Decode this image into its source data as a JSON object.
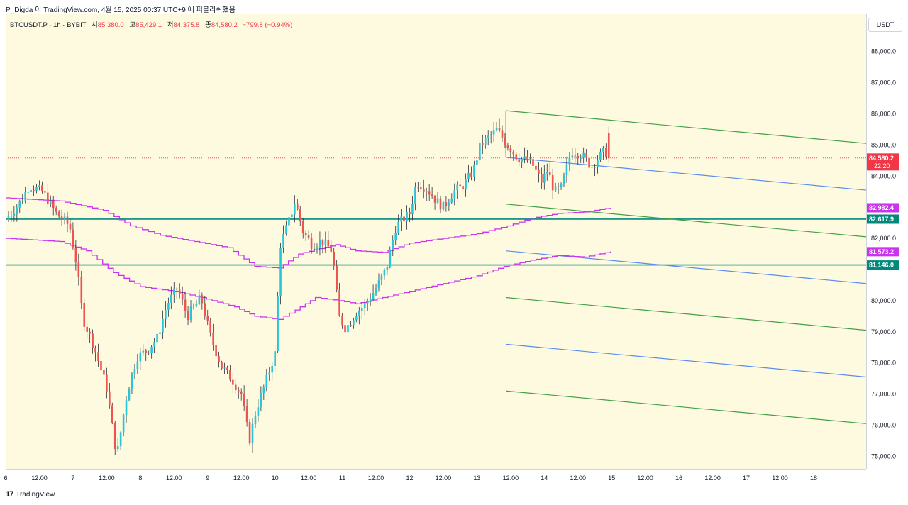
{
  "header": {
    "publisher_line": "P_Digda 이 TradingView.com, 4월 15, 2025 00:37 UTC+9 에 퍼블리쉬했음"
  },
  "legend": {
    "symbol": "BTCUSDT.P · 1h · BYBIT",
    "open_label": "시",
    "open": "85,380.0",
    "high_label": "고",
    "high": "85,429.1",
    "low_label": "저",
    "low": "84,375.8",
    "close_label": "종",
    "close": "84,580.2",
    "change": "−799.8 (−0.94%)"
  },
  "currency_button": "USDT",
  "footer": {
    "brand_mark": "17",
    "brand": "TradingView"
  },
  "colors": {
    "background": "#fefae0",
    "up": "#26c6da",
    "down": "#ef5350",
    "green_line": "#43a047",
    "blue_line": "#5b8def",
    "magenta": "#cc33ee",
    "teal_level": "#00897b",
    "price_tag": "#f23645"
  },
  "chart_data": {
    "type": "candlestick",
    "symbol": "BTCUSDT.P",
    "interval": "1h",
    "exchange": "BYBIT",
    "ylim": [
      74600,
      89200
    ],
    "y_ticks": [
      {
        "value": 75000,
        "label": "75,000.0"
      },
      {
        "value": 76000,
        "label": "76,000.0"
      },
      {
        "value": 77000,
        "label": "77,000.0"
      },
      {
        "value": 78000,
        "label": "78,000.0"
      },
      {
        "value": 79000,
        "label": "79,000.0"
      },
      {
        "value": 80000,
        "label": "80,000.0"
      },
      {
        "value": 82000,
        "label": "82,000.0"
      },
      {
        "value": 84000,
        "label": "84,000.0"
      },
      {
        "value": 85000,
        "label": "85,000.0"
      },
      {
        "value": 86000,
        "label": "86,000.0"
      },
      {
        "value": 87000,
        "label": "87,000.0"
      },
      {
        "value": 88000,
        "label": "88,000.0"
      }
    ],
    "x_range_days": [
      6,
      18.78
    ],
    "x_ticks": [
      {
        "day": 6,
        "label": "6"
      },
      {
        "day": 6.5,
        "label": "12:00"
      },
      {
        "day": 7,
        "label": "7"
      },
      {
        "day": 7.5,
        "label": "12:00"
      },
      {
        "day": 8,
        "label": "8"
      },
      {
        "day": 8.5,
        "label": "12:00"
      },
      {
        "day": 9,
        "label": "9"
      },
      {
        "day": 9.5,
        "label": "12:00"
      },
      {
        "day": 10,
        "label": "10"
      },
      {
        "day": 10.5,
        "label": "12:00"
      },
      {
        "day": 11,
        "label": "11"
      },
      {
        "day": 11.5,
        "label": "12:00"
      },
      {
        "day": 12,
        "label": "12"
      },
      {
        "day": 12.5,
        "label": "12:00"
      },
      {
        "day": 13,
        "label": "13"
      },
      {
        "day": 13.5,
        "label": "12:00"
      },
      {
        "day": 14,
        "label": "14"
      },
      {
        "day": 14.5,
        "label": "12:00"
      },
      {
        "day": 15,
        "label": "15"
      },
      {
        "day": 15.5,
        "label": "12:00"
      },
      {
        "day": 16,
        "label": "16"
      },
      {
        "day": 16.5,
        "label": "12:00"
      },
      {
        "day": 17,
        "label": "17"
      },
      {
        "day": 17.5,
        "label": "12:00"
      },
      {
        "day": 18,
        "label": "18"
      }
    ],
    "price_path": [
      [
        6.0,
        82600
      ],
      [
        6.2,
        83100
      ],
      [
        6.35,
        83700
      ],
      [
        6.55,
        83500
      ],
      [
        6.75,
        82800
      ],
      [
        6.95,
        82400
      ],
      [
        7.05,
        81200
      ],
      [
        7.15,
        79400
      ],
      [
        7.3,
        78600
      ],
      [
        7.5,
        77200
      ],
      [
        7.65,
        75000
      ],
      [
        7.8,
        77000
      ],
      [
        7.95,
        78200
      ],
      [
        8.1,
        78400
      ],
      [
        8.25,
        78800
      ],
      [
        8.4,
        79900
      ],
      [
        8.55,
        80400
      ],
      [
        8.7,
        79500
      ],
      [
        8.9,
        80100
      ],
      [
        9.05,
        78800
      ],
      [
        9.2,
        77900
      ],
      [
        9.35,
        77500
      ],
      [
        9.5,
        77000
      ],
      [
        9.62,
        75500
      ],
      [
        9.72,
        76500
      ],
      [
        9.85,
        77300
      ],
      [
        10.0,
        78300
      ],
      [
        10.08,
        81800
      ],
      [
        10.2,
        82500
      ],
      [
        10.3,
        83200
      ],
      [
        10.42,
        82200
      ],
      [
        10.55,
        81800
      ],
      [
        10.7,
        81900
      ],
      [
        10.85,
        81600
      ],
      [
        10.95,
        79500
      ],
      [
        11.05,
        79100
      ],
      [
        11.2,
        79600
      ],
      [
        11.35,
        79900
      ],
      [
        11.5,
        80400
      ],
      [
        11.65,
        81000
      ],
      [
        11.8,
        82400
      ],
      [
        12.0,
        82800
      ],
      [
        12.1,
        83800
      ],
      [
        12.25,
        83600
      ],
      [
        12.4,
        83200
      ],
      [
        12.5,
        83000
      ],
      [
        12.65,
        83500
      ],
      [
        12.8,
        83700
      ],
      [
        12.95,
        84200
      ],
      [
        13.05,
        85000
      ],
      [
        13.15,
        85200
      ],
      [
        13.3,
        85500
      ],
      [
        13.45,
        85000
      ],
      [
        13.6,
        84600
      ],
      [
        13.75,
        84500
      ],
      [
        13.85,
        84300
      ],
      [
        13.95,
        83800
      ],
      [
        14.05,
        84200
      ],
      [
        14.15,
        83500
      ],
      [
        14.25,
        83600
      ],
      [
        14.4,
        84800
      ],
      [
        14.55,
        84700
      ],
      [
        14.7,
        84300
      ],
      [
        14.8,
        84600
      ],
      [
        14.9,
        84800
      ],
      [
        14.97,
        84580
      ]
    ],
    "series": [
      {
        "name": "",
        "color": "#cc33ee",
        "points": [
          [
            6.0,
            83300
          ],
          [
            6.8,
            83200
          ],
          [
            7.45,
            82900
          ],
          [
            7.85,
            82400
          ],
          [
            8.3,
            82100
          ],
          [
            8.8,
            81900
          ],
          [
            9.3,
            81700
          ],
          [
            9.7,
            81100
          ],
          [
            10.05,
            81050
          ],
          [
            10.35,
            81500
          ],
          [
            10.9,
            81800
          ],
          [
            11.2,
            81600
          ],
          [
            11.6,
            81550
          ],
          [
            12.0,
            81850
          ],
          [
            12.5,
            82000
          ],
          [
            13.0,
            82150
          ],
          [
            13.45,
            82400
          ],
          [
            13.8,
            82650
          ],
          [
            14.2,
            82800
          ],
          [
            14.6,
            82850
          ],
          [
            14.98,
            82982.4
          ]
        ]
      },
      {
        "name": "",
        "color": "#cc33ee",
        "points": [
          [
            6.0,
            82000
          ],
          [
            6.8,
            81900
          ],
          [
            7.2,
            81600
          ],
          [
            7.6,
            80900
          ],
          [
            8.0,
            80450
          ],
          [
            8.5,
            80300
          ],
          [
            8.9,
            80100
          ],
          [
            9.4,
            79800
          ],
          [
            9.7,
            79500
          ],
          [
            10.05,
            79400
          ],
          [
            10.3,
            79700
          ],
          [
            10.6,
            80100
          ],
          [
            10.95,
            80000
          ],
          [
            11.2,
            79900
          ],
          [
            11.6,
            80100
          ],
          [
            12.0,
            80300
          ],
          [
            12.5,
            80550
          ],
          [
            13.0,
            80800
          ],
          [
            13.4,
            81100
          ],
          [
            13.8,
            81300
          ],
          [
            14.2,
            81450
          ],
          [
            14.6,
            81400
          ],
          [
            14.98,
            81573.2
          ]
        ]
      }
    ],
    "horizontal_levels": [
      {
        "value": 82617.9,
        "label": "82,617.9",
        "color": "#00897b"
      },
      {
        "value": 81146.0,
        "label": "81,146.0",
        "color": "#00897b"
      }
    ],
    "current_price": {
      "value": 84580.2,
      "label": "84,580.2",
      "countdown": "22:20"
    },
    "pitchfork_lines": [
      {
        "color": "#43a047",
        "start": [
          13.43,
          86100
        ],
        "end": [
          18.78,
          85050
        ]
      },
      {
        "color": "#5b8def",
        "start": [
          13.43,
          84600
        ],
        "end": [
          18.78,
          83550
        ]
      },
      {
        "color": "#43a047",
        "start": [
          13.43,
          83100
        ],
        "end": [
          18.78,
          82050
        ]
      },
      {
        "color": "#5b8def",
        "start": [
          13.43,
          81600
        ],
        "end": [
          18.78,
          80550
        ]
      },
      {
        "color": "#43a047",
        "start": [
          13.43,
          80100
        ],
        "end": [
          18.78,
          79050
        ]
      },
      {
        "color": "#5b8def",
        "start": [
          13.43,
          78600
        ],
        "end": [
          18.78,
          77550
        ]
      },
      {
        "color": "#43a047",
        "start": [
          13.43,
          77100
        ],
        "end": [
          18.78,
          76050
        ]
      }
    ],
    "magenta_tags": [
      {
        "value": 82982.4,
        "label": "82,982.4"
      },
      {
        "value": 81573.2,
        "label": "81,573.2"
      }
    ]
  }
}
